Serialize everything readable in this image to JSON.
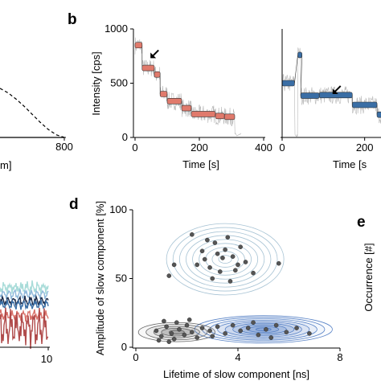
{
  "chart_data": [
    {
      "panel": "",
      "type": "line",
      "xlabel_visible": "m]",
      "x_ticks_visible": [
        "800"
      ],
      "series": [
        {
          "style": "dashed",
          "x": [
            640,
            660,
            680,
            700,
            720,
            740,
            760,
            780,
            800
          ],
          "y": [
            0.55,
            0.5,
            0.43,
            0.35,
            0.26,
            0.17,
            0.09,
            0.03,
            0.0
          ]
        },
        {
          "style": "solid",
          "x": [
            640,
            800
          ],
          "y": [
            0.0,
            0.0
          ]
        }
      ]
    },
    {
      "panel": "b",
      "type": "line",
      "xlabel": "Time [s]",
      "ylabel": "Intensity [cps]",
      "x_ticks": [
        "0",
        "200",
        "400"
      ],
      "y_ticks": [
        "0",
        "500",
        "1000"
      ],
      "xlim": [
        0,
        400
      ],
      "ylim": [
        0,
        1000
      ],
      "grid": false,
      "arrow_at": {
        "x": 58,
        "y": 760
      },
      "steps": [
        {
          "t0": 0,
          "t1": 22,
          "level": 850
        },
        {
          "t0": 22,
          "t1": 60,
          "level": 640
        },
        {
          "t0": 60,
          "t1": 78,
          "level": 580
        },
        {
          "t0": 78,
          "t1": 100,
          "level": 400
        },
        {
          "t0": 100,
          "t1": 145,
          "level": 335
        },
        {
          "t0": 145,
          "t1": 175,
          "level": 270
        },
        {
          "t0": 175,
          "t1": 250,
          "level": 215
        },
        {
          "t0": 250,
          "t1": 278,
          "level": 198
        },
        {
          "t0": 278,
          "t1": 310,
          "level": 190
        }
      ]
    },
    {
      "panel": "",
      "type": "line",
      "xlabel_visible": "Time [s",
      "x_ticks_visible": [
        "0",
        "200"
      ],
      "xlim": [
        0,
        300
      ],
      "ylim": [
        0,
        1000
      ],
      "arrow_at": {
        "x": 130,
        "y": 430
      },
      "steps": [
        {
          "t0": 0,
          "t1": 30,
          "level": 500
        },
        {
          "t0": 38,
          "t1": 48,
          "level": 760
        },
        {
          "t0": 45,
          "t1": 90,
          "level": 385
        },
        {
          "t0": 90,
          "t1": 170,
          "level": 390
        },
        {
          "t0": 170,
          "t1": 230,
          "level": 300
        },
        {
          "t0": 230,
          "t1": 300,
          "level": 210
        }
      ]
    },
    {
      "panel": "",
      "type": "line",
      "x_ticks_visible": [
        "10"
      ],
      "series": [
        {
          "color": "#a9dcd9",
          "y": [
            0.62,
            0.6,
            0.64,
            0.58,
            0.66,
            0.61
          ]
        },
        {
          "color": "#8fb8da",
          "y": [
            0.55,
            0.57,
            0.53,
            0.56,
            0.54,
            0.55
          ]
        },
        {
          "color": "#1b2b4a",
          "y": [
            0.47,
            0.5,
            0.46,
            0.49,
            0.48,
            0.47
          ]
        },
        {
          "color": "#3a6ea5",
          "y": [
            0.44,
            0.45,
            0.42,
            0.46,
            0.43,
            0.45
          ]
        },
        {
          "color": "#d9726a",
          "y": [
            0.33,
            0.36,
            0.3,
            0.35,
            0.32,
            0.34
          ]
        },
        {
          "color": "#b04a4a",
          "y": [
            0.18,
            0.3,
            0.1,
            0.25,
            0.15,
            0.22
          ]
        }
      ]
    },
    {
      "panel": "d",
      "type": "scatter",
      "xlabel": "Lifetime of slow component [ns]",
      "ylabel": "Amplitude of slow component [%]",
      "x_ticks": [
        "0",
        "4",
        "8"
      ],
      "y_ticks": [
        "0",
        "50",
        "100"
      ],
      "xlim": [
        0,
        8
      ],
      "ylim": [
        0,
        100
      ],
      "point_color": "#555555",
      "contours": [
        {
          "color": "#9dbccf",
          "cx": 3.5,
          "cy": 64,
          "rx": 2.3,
          "ry": 26
        },
        {
          "color": "#4a78c2",
          "cx": 5.0,
          "cy": 13,
          "rx": 2.7,
          "ry": 10
        },
        {
          "color": "#555555",
          "cx": 1.6,
          "cy": 11,
          "rx": 1.5,
          "ry": 7
        }
      ],
      "points": [
        {
          "x": 2.2,
          "y": 82
        },
        {
          "x": 2.8,
          "y": 78
        },
        {
          "x": 3.1,
          "y": 76
        },
        {
          "x": 3.6,
          "y": 80
        },
        {
          "x": 4.1,
          "y": 73
        },
        {
          "x": 2.6,
          "y": 70
        },
        {
          "x": 3.2,
          "y": 68
        },
        {
          "x": 3.4,
          "y": 65
        },
        {
          "x": 3.8,
          "y": 66
        },
        {
          "x": 4.3,
          "y": 62
        },
        {
          "x": 2.4,
          "y": 60
        },
        {
          "x": 2.9,
          "y": 58
        },
        {
          "x": 3.3,
          "y": 55
        },
        {
          "x": 3.9,
          "y": 56
        },
        {
          "x": 4.6,
          "y": 54
        },
        {
          "x": 1.5,
          "y": 60
        },
        {
          "x": 1.3,
          "y": 52
        },
        {
          "x": 3.0,
          "y": 50
        },
        {
          "x": 3.7,
          "y": 48
        },
        {
          "x": 5.6,
          "y": 61
        },
        {
          "x": 3.5,
          "y": 71
        },
        {
          "x": 2.7,
          "y": 64
        },
        {
          "x": 4.0,
          "y": 60
        },
        {
          "x": 0.8,
          "y": 12
        },
        {
          "x": 1.0,
          "y": 8
        },
        {
          "x": 1.2,
          "y": 15
        },
        {
          "x": 1.4,
          "y": 10
        },
        {
          "x": 1.5,
          "y": 6
        },
        {
          "x": 1.7,
          "y": 13
        },
        {
          "x": 1.9,
          "y": 9
        },
        {
          "x": 2.0,
          "y": 16
        },
        {
          "x": 2.2,
          "y": 11
        },
        {
          "x": 1.1,
          "y": 19
        },
        {
          "x": 0.9,
          "y": 5
        },
        {
          "x": 1.6,
          "y": 18
        },
        {
          "x": 2.4,
          "y": 7
        },
        {
          "x": 2.6,
          "y": 14
        },
        {
          "x": 1.3,
          "y": 4
        },
        {
          "x": 2.1,
          "y": 20
        },
        {
          "x": 2.9,
          "y": 12
        },
        {
          "x": 3.2,
          "y": 15
        },
        {
          "x": 3.5,
          "y": 10
        },
        {
          "x": 3.8,
          "y": 16
        },
        {
          "x": 4.1,
          "y": 12
        },
        {
          "x": 4.4,
          "y": 14
        },
        {
          "x": 4.8,
          "y": 9
        },
        {
          "x": 5.1,
          "y": 13
        },
        {
          "x": 5.5,
          "y": 16
        },
        {
          "x": 5.9,
          "y": 11
        },
        {
          "x": 6.3,
          "y": 14
        },
        {
          "x": 6.8,
          "y": 10
        },
        {
          "x": 3.0,
          "y": 8
        },
        {
          "x": 4.6,
          "y": 18
        },
        {
          "x": 5.3,
          "y": 7
        }
      ]
    },
    {
      "panel": "e",
      "type": "bar",
      "ylabel_visible": "Occurrence [#]"
    }
  ],
  "panels": {
    "b": "b",
    "d": "d",
    "e": "e"
  }
}
